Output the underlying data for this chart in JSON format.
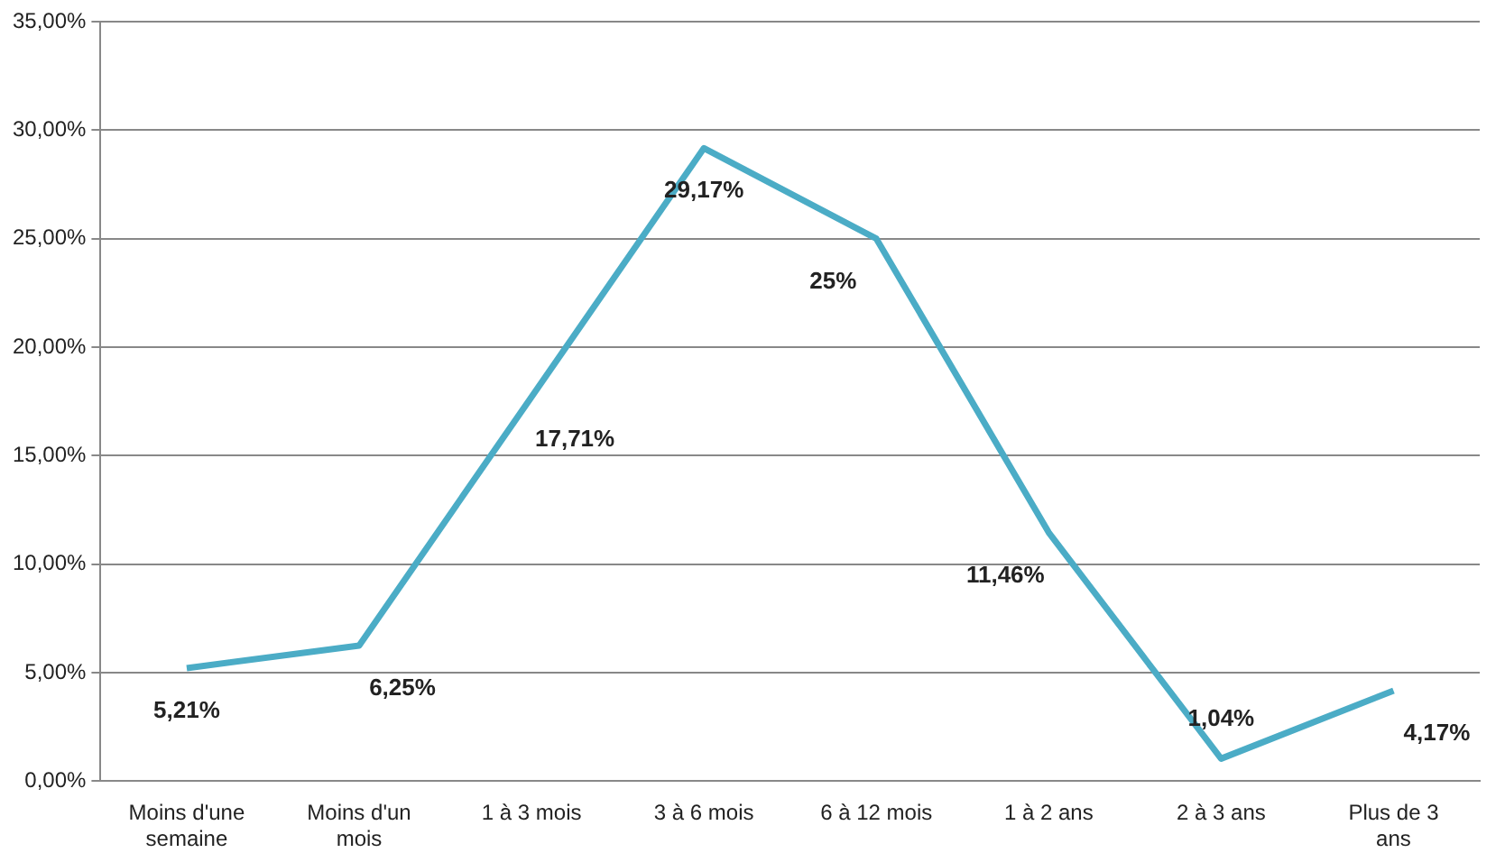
{
  "chart_data": {
    "type": "line",
    "categories": [
      "Moins d'une semaine",
      "Moins d'un mois",
      "1 à 3 mois",
      "3 à 6 mois",
      "6 à 12 mois",
      "1 à 2 ans",
      "2 à 3 ans",
      "Plus de 3 ans"
    ],
    "series": [
      {
        "color": "#4bacc6",
        "values": [
          5.21,
          6.25,
          17.71,
          29.17,
          25,
          11.46,
          1.04,
          4.17
        ],
        "value_labels": [
          "5,21%",
          "6,25%",
          "17,71%",
          "29,17%",
          "25%",
          "11,46%",
          "1,04%",
          "4,17%"
        ]
      }
    ],
    "ylim": [
      0,
      35
    ],
    "yticks": [
      {
        "value": 0,
        "label": "0,00%"
      },
      {
        "value": 5,
        "label": "5,00%"
      },
      {
        "value": 10,
        "label": "10,00%"
      },
      {
        "value": 15,
        "label": "15,00%"
      },
      {
        "value": 20,
        "label": "20,00%"
      },
      {
        "value": 25,
        "label": "25,00%"
      },
      {
        "value": 30,
        "label": "30,00%"
      },
      {
        "value": 35,
        "label": "35,00%"
      }
    ],
    "grid": "y",
    "legend": false,
    "marker": "none",
    "line_style": "solid"
  }
}
